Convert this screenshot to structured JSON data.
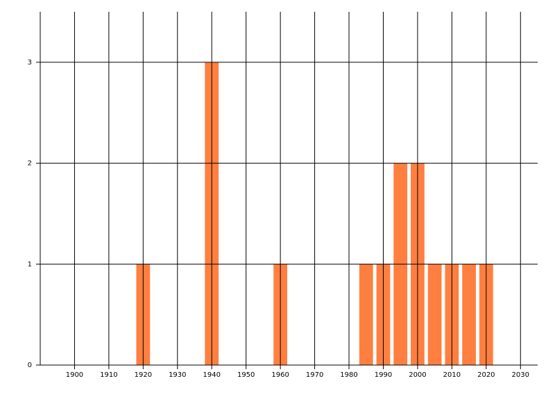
{
  "chart_data": {
    "type": "bar",
    "x": [
      1920,
      1940,
      1960,
      1985,
      1990,
      1995,
      2000,
      2005,
      2010,
      2015,
      2020
    ],
    "values": [
      1,
      3,
      1,
      1,
      1,
      2,
      2,
      1,
      1,
      1,
      1
    ],
    "color": "#ff7f41",
    "xlim": [
      1890,
      2035
    ],
    "xticks": [
      1900,
      1910,
      1920,
      1930,
      1940,
      1950,
      1960,
      1970,
      1980,
      1990,
      2000,
      2010,
      2020,
      2030
    ],
    "ylim": [
      0,
      3.5
    ],
    "yticks": [
      0,
      1,
      2,
      3
    ],
    "grid": true
  }
}
